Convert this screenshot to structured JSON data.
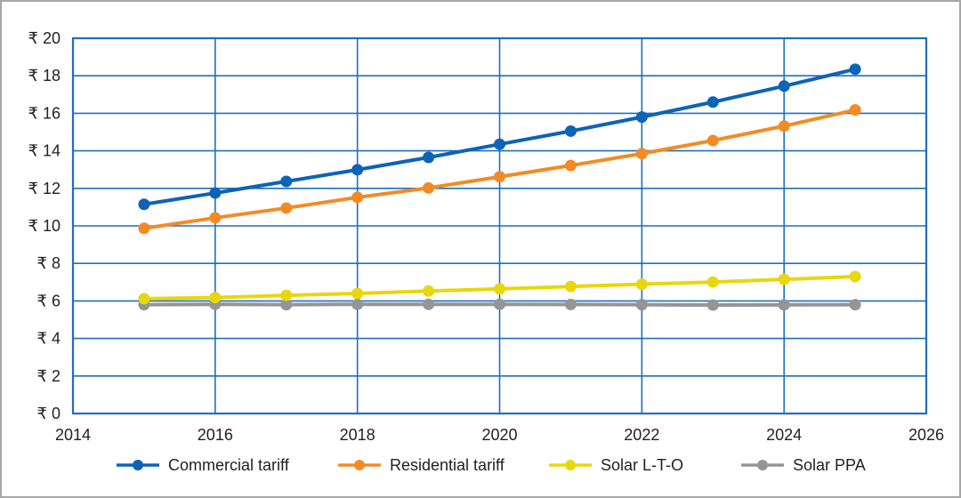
{
  "chart_data": {
    "type": "line",
    "title": "",
    "xlabel": "",
    "ylabel": "",
    "xlim": [
      2014,
      2026
    ],
    "ylim": [
      0,
      20
    ],
    "x_ticks": [
      2014,
      2016,
      2018,
      2020,
      2022,
      2024,
      2026
    ],
    "y_ticks": [
      0,
      2,
      4,
      6,
      8,
      10,
      12,
      14,
      16,
      18,
      20
    ],
    "y_tick_prefix": "₹ ",
    "grid": true,
    "legend_position": "bottom",
    "x": [
      2015,
      2016,
      2017,
      2018,
      2019,
      2020,
      2021,
      2022,
      2023,
      2024,
      2025
    ],
    "series": [
      {
        "name": "Commercial tariff",
        "color": "#0d63b8",
        "values": [
          11.15,
          11.75,
          12.37,
          12.99,
          13.65,
          14.35,
          15.05,
          15.8,
          16.6,
          17.45,
          18.35
        ]
      },
      {
        "name": "Residential tariff",
        "color": "#f28b26",
        "values": [
          9.87,
          10.43,
          10.95,
          11.52,
          12.02,
          12.62,
          13.22,
          13.85,
          14.55,
          15.32,
          16.18
        ]
      },
      {
        "name": "Solar L-T-O",
        "color": "#e8d70d",
        "values": [
          6.12,
          6.18,
          6.3,
          6.4,
          6.53,
          6.64,
          6.77,
          6.89,
          7.01,
          7.15,
          7.3
        ]
      },
      {
        "name": "Solar PPA",
        "color": "#939598",
        "values": [
          5.8,
          5.82,
          5.8,
          5.82,
          5.82,
          5.82,
          5.81,
          5.8,
          5.78,
          5.79,
          5.8
        ]
      }
    ]
  },
  "colors": {
    "grid": "#1f6fbf",
    "axis_text": "#222222"
  }
}
